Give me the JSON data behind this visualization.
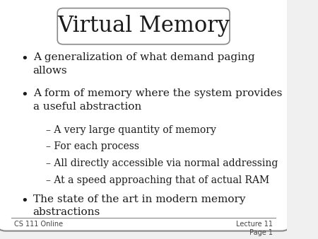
{
  "title": "Virtual Memory",
  "bg_color": "#f0f0f0",
  "slide_bg": "#ffffff",
  "title_fontsize": 22,
  "body_fontsize": 11,
  "sub_fontsize": 10,
  "footer_fontsize": 7,
  "bullet_items": [
    "A generalization of what demand paging\nallows",
    "A form of memory where the system provides\na useful abstraction"
  ],
  "sub_items": [
    "– A very large quantity of memory",
    "– For each process",
    "– All directly accessible via normal addressing",
    "– At a speed approaching that of actual RAM"
  ],
  "last_bullet": "The state of the art in modern memory\nabstractions",
  "footer_left": "CS 111 Online",
  "footer_right": "Lecture 11\nPage 1",
  "text_color": "#1a1a1a",
  "footer_color": "#444444"
}
